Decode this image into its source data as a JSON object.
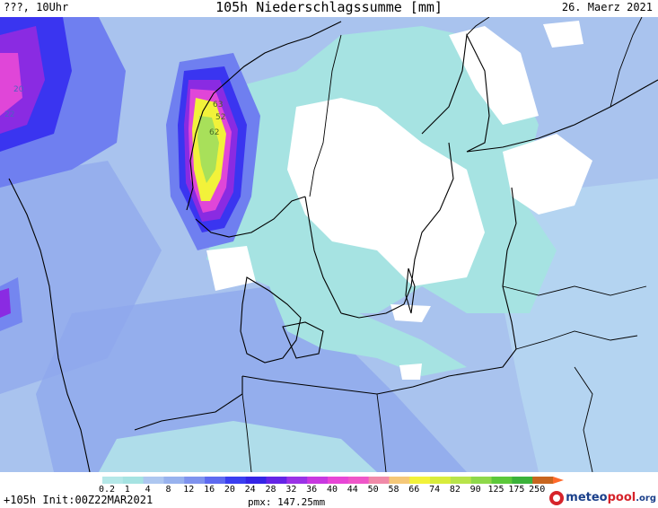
{
  "header": {
    "left": "???, 10Uhr",
    "title": "105h Niederschlagssumme [mm]",
    "date": "26. Maerz 2021"
  },
  "map": {
    "sea_colors": {
      "background": "#a9c3ee",
      "light": "#b5d6f1",
      "teal": "#a6e3e2",
      "medium": "#8ea7ec",
      "blue": "#6f7ff0",
      "deep_blue": "#3a35f0",
      "violet": "#8a2be2",
      "magenta": "#e046d8",
      "yellow": "#f2f23a",
      "green": "#a8e05a",
      "dry": "#ffffff",
      "border": "#000000"
    },
    "contour_labels": [
      {
        "name": "label-20-west",
        "text": "20"
      },
      {
        "name": "label-22-west",
        "text": "22"
      },
      {
        "name": "label-63-norway",
        "text": "63"
      },
      {
        "name": "label-52-norway",
        "text": "52"
      },
      {
        "name": "label-62-norway",
        "text": "62"
      }
    ]
  },
  "legend": {
    "ticks": [
      "0.2",
      "1",
      "4",
      "8",
      "12",
      "16",
      "20",
      "24",
      "28",
      "32",
      "36",
      "40",
      "44",
      "50",
      "58",
      "66",
      "74",
      "82",
      "90",
      "125",
      "175",
      "250"
    ],
    "colors": [
      "#b5e8e8",
      "#a6e3e2",
      "#aec7f0",
      "#98b2ee",
      "#7f93ee",
      "#5e6af0",
      "#3a3ef0",
      "#3424e6",
      "#6424e6",
      "#9a32e6",
      "#c838e0",
      "#e846d6",
      "#ef56c8",
      "#f08aa8",
      "#f5c878",
      "#f2f23a",
      "#d8ec3c",
      "#b8e44a",
      "#8ed84a",
      "#5cc83a",
      "#3bb23a",
      "#c8651e"
    ],
    "arrow_color": "#ff6a2a"
  },
  "footer": {
    "lead": "+105h Init:00Z22MAR2021",
    "pmx": "pmx: 147.25mm",
    "logo": {
      "part1": "meteo",
      "part2": "pool",
      "part3": ".org"
    }
  }
}
